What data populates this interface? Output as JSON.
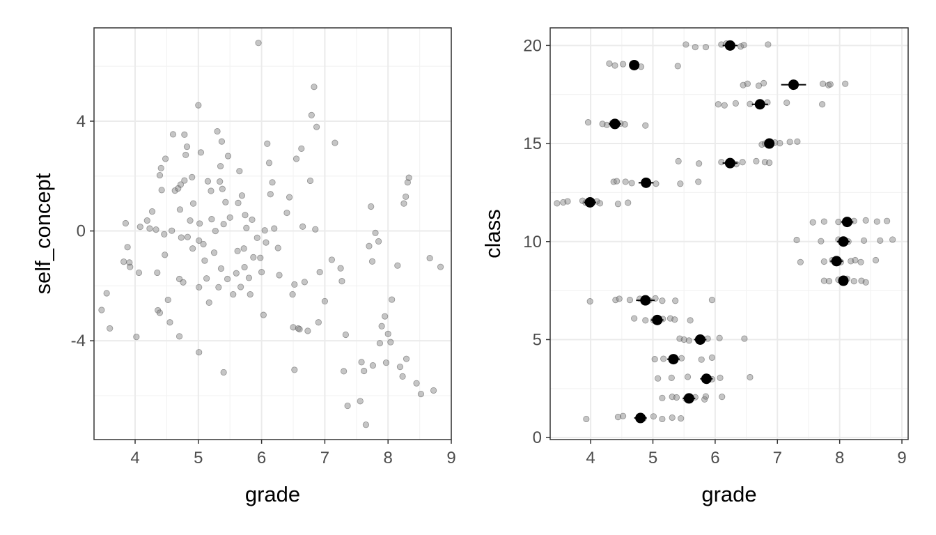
{
  "chart_data": [
    {
      "type": "scatter",
      "xlabel": "grade",
      "ylabel": "self_concept",
      "xlim": [
        3.35,
        9.0
      ],
      "ylim": [
        -7.6,
        7.4
      ],
      "x_ticks": [
        4,
        5,
        6,
        7,
        8,
        9
      ],
      "y_ticks": [
        -4,
        0,
        4
      ],
      "y_tick_labels": [
        "-4",
        "0",
        "4"
      ],
      "grid": true,
      "points": [
        [
          3.47,
          -2.88
        ],
        [
          3.55,
          -2.27
        ],
        [
          3.6,
          -3.55
        ],
        [
          3.82,
          -1.12
        ],
        [
          3.85,
          0.28
        ],
        [
          3.88,
          -0.59
        ],
        [
          3.91,
          -1.15
        ],
        [
          3.92,
          -1.31
        ],
        [
          4.02,
          -3.86
        ],
        [
          4.06,
          -1.52
        ],
        [
          4.08,
          0.15
        ],
        [
          4.19,
          0.38
        ],
        [
          4.23,
          0.09
        ],
        [
          4.27,
          0.71
        ],
        [
          4.33,
          0.05
        ],
        [
          4.35,
          -1.52
        ],
        [
          4.36,
          -2.89
        ],
        [
          4.39,
          -2.98
        ],
        [
          4.39,
          2.03
        ],
        [
          4.41,
          2.29
        ],
        [
          4.42,
          1.49
        ],
        [
          4.46,
          -0.12
        ],
        [
          4.47,
          -0.87
        ],
        [
          4.48,
          2.63
        ],
        [
          4.52,
          -2.51
        ],
        [
          4.55,
          -3.33
        ],
        [
          4.58,
          0.01
        ],
        [
          4.6,
          3.52
        ],
        [
          4.63,
          1.47
        ],
        [
          4.68,
          1.55
        ],
        [
          4.7,
          -3.84
        ],
        [
          4.7,
          -1.75
        ],
        [
          4.71,
          0.78
        ],
        [
          4.72,
          1.69
        ],
        [
          4.73,
          -0.24
        ],
        [
          4.76,
          -1.87
        ],
        [
          4.78,
          1.84
        ],
        [
          4.78,
          3.51
        ],
        [
          4.8,
          2.77
        ],
        [
          4.82,
          3.07
        ],
        [
          4.83,
          -0.22
        ],
        [
          4.87,
          0.38
        ],
        [
          4.9,
          1.96
        ],
        [
          4.91,
          -0.64
        ],
        [
          4.92,
          1.0
        ],
        [
          5.0,
          4.58
        ],
        [
          5.01,
          -2.05
        ],
        [
          5.01,
          -4.42
        ],
        [
          5.01,
          -0.35
        ],
        [
          5.02,
          0.27
        ],
        [
          5.04,
          2.86
        ],
        [
          5.08,
          -0.48
        ],
        [
          5.1,
          -1.08
        ],
        [
          5.13,
          -1.73
        ],
        [
          5.15,
          1.81
        ],
        [
          5.17,
          -2.61
        ],
        [
          5.2,
          1.46
        ],
        [
          5.21,
          0.43
        ],
        [
          5.25,
          -0.79
        ],
        [
          5.27,
          0.0
        ],
        [
          5.3,
          3.63
        ],
        [
          5.32,
          -2.05
        ],
        [
          5.34,
          1.8
        ],
        [
          5.35,
          2.36
        ],
        [
          5.36,
          -1.37
        ],
        [
          5.37,
          3.26
        ],
        [
          5.38,
          1.53
        ],
        [
          5.4,
          -5.15
        ],
        [
          5.4,
          0.25
        ],
        [
          5.43,
          1.05
        ],
        [
          5.46,
          -1.75
        ],
        [
          5.47,
          2.73
        ],
        [
          5.5,
          0.49
        ],
        [
          5.55,
          -2.31
        ],
        [
          5.6,
          -1.54
        ],
        [
          5.62,
          -0.73
        ],
        [
          5.63,
          1.02
        ],
        [
          5.65,
          2.18
        ],
        [
          5.67,
          -2.04
        ],
        [
          5.69,
          1.29
        ],
        [
          5.72,
          -0.64
        ],
        [
          5.73,
          -1.32
        ],
        [
          5.74,
          0.58
        ],
        [
          5.76,
          0.11
        ],
        [
          5.8,
          -1.71
        ],
        [
          5.82,
          -2.31
        ],
        [
          5.85,
          0.41
        ],
        [
          5.87,
          -0.96
        ],
        [
          5.93,
          -0.25
        ],
        [
          5.95,
          6.85
        ],
        [
          5.98,
          -0.98
        ],
        [
          6.0,
          -1.5
        ],
        [
          6.03,
          -3.06
        ],
        [
          6.05,
          0.02
        ],
        [
          6.07,
          -0.42
        ],
        [
          6.09,
          3.18
        ],
        [
          6.12,
          2.48
        ],
        [
          6.14,
          1.34
        ],
        [
          6.17,
          1.77
        ],
        [
          6.2,
          0.09
        ],
        [
          6.26,
          -0.62
        ],
        [
          6.28,
          -1.61
        ],
        [
          6.4,
          0.66
        ],
        [
          6.44,
          1.23
        ],
        [
          6.49,
          -2.31
        ],
        [
          6.5,
          -3.51
        ],
        [
          6.52,
          -1.95
        ],
        [
          6.52,
          -5.06
        ],
        [
          6.55,
          2.63
        ],
        [
          6.58,
          -3.55
        ],
        [
          6.6,
          -3.58
        ],
        [
          6.63,
          3.0
        ],
        [
          6.65,
          0.16
        ],
        [
          6.68,
          -1.86
        ],
        [
          6.73,
          -3.64
        ],
        [
          6.77,
          1.83
        ],
        [
          6.79,
          4.22
        ],
        [
          6.83,
          5.25
        ],
        [
          6.85,
          0.06
        ],
        [
          6.87,
          3.79
        ],
        [
          6.9,
          -3.33
        ],
        [
          6.92,
          -1.5
        ],
        [
          7.0,
          -2.56
        ],
        [
          7.11,
          -1.05
        ],
        [
          7.16,
          3.21
        ],
        [
          7.25,
          -1.36
        ],
        [
          7.27,
          -1.83
        ],
        [
          7.3,
          -5.11
        ],
        [
          7.33,
          -3.78
        ],
        [
          7.36,
          -6.37
        ],
        [
          7.56,
          -6.2
        ],
        [
          7.58,
          -4.78
        ],
        [
          7.62,
          -5.1
        ],
        [
          7.65,
          -7.06
        ],
        [
          7.7,
          -0.55
        ],
        [
          7.73,
          0.89
        ],
        [
          7.75,
          -1.11
        ],
        [
          7.76,
          -4.9
        ],
        [
          7.8,
          -0.07
        ],
        [
          7.85,
          -0.38
        ],
        [
          7.87,
          -4.09
        ],
        [
          7.9,
          -3.47
        ],
        [
          7.95,
          -3.11
        ],
        [
          7.97,
          -4.8
        ],
        [
          8.0,
          -3.75
        ],
        [
          8.04,
          -4.05
        ],
        [
          8.06,
          -2.5
        ],
        [
          8.15,
          -1.26
        ],
        [
          8.19,
          -4.95
        ],
        [
          8.23,
          -5.3
        ],
        [
          8.25,
          1.0
        ],
        [
          8.28,
          1.25
        ],
        [
          8.29,
          -4.66
        ],
        [
          8.31,
          1.77
        ],
        [
          8.33,
          1.94
        ],
        [
          8.45,
          -5.55
        ],
        [
          8.52,
          -5.94
        ],
        [
          8.66,
          -0.99
        ],
        [
          8.72,
          -5.81
        ],
        [
          8.83,
          -1.31
        ]
      ]
    },
    {
      "type": "scatter",
      "xlabel": "grade",
      "ylabel": "class",
      "xlim": [
        3.35,
        9.1
      ],
      "ylim": [
        -0.1,
        20.9
      ],
      "x_ticks": [
        4,
        5,
        6,
        7,
        8,
        9
      ],
      "y_ticks": [
        0,
        5,
        10,
        15,
        20
      ],
      "grid": true,
      "points": [
        [
          3.93,
          0.95
        ],
        [
          4.44,
          1.05
        ],
        [
          4.52,
          1.1
        ],
        [
          4.78,
          1.02
        ],
        [
          4.85,
          0.98
        ],
        [
          5.01,
          1.08
        ],
        [
          5.15,
          0.95
        ],
        [
          5.31,
          1.02
        ],
        [
          5.45,
          0.98
        ],
        [
          5.31,
          2.08
        ],
        [
          5.15,
          2.02
        ],
        [
          5.38,
          2.05
        ],
        [
          5.53,
          1.98
        ],
        [
          5.68,
          2.06
        ],
        [
          5.83,
          1.95
        ],
        [
          5.85,
          2.1
        ],
        [
          6.11,
          2.08
        ],
        [
          5.08,
          3.02
        ],
        [
          5.3,
          3.05
        ],
        [
          5.56,
          3.1
        ],
        [
          5.85,
          3.05
        ],
        [
          5.95,
          2.98
        ],
        [
          6.08,
          3.05
        ],
        [
          6.56,
          3.08
        ],
        [
          5.03,
          4.0
        ],
        [
          5.17,
          4.02
        ],
        [
          5.3,
          3.95
        ],
        [
          5.46,
          4.05
        ],
        [
          5.78,
          3.98
        ],
        [
          5.95,
          4.08
        ],
        [
          5.43,
          5.05
        ],
        [
          5.5,
          5.0
        ],
        [
          5.58,
          4.95
        ],
        [
          5.73,
          5.02
        ],
        [
          5.88,
          5.05
        ],
        [
          6.07,
          5.08
        ],
        [
          6.47,
          5.05
        ],
        [
          4.7,
          6.08
        ],
        [
          4.88,
          5.98
        ],
        [
          5.01,
          5.98
        ],
        [
          5.16,
          6.05
        ],
        [
          5.28,
          6.08
        ],
        [
          5.35,
          6.02
        ],
        [
          5.6,
          5.98
        ],
        [
          4.4,
          7.02
        ],
        [
          4.46,
          7.08
        ],
        [
          4.63,
          7.02
        ],
        [
          4.79,
          7.08
        ],
        [
          4.94,
          7.0
        ],
        [
          5.04,
          7.1
        ],
        [
          5.15,
          6.98
        ],
        [
          5.36,
          6.98
        ],
        [
          5.95,
          7.02
        ],
        [
          3.99,
          6.95
        ],
        [
          7.75,
          8.0
        ],
        [
          7.83,
          7.98
        ],
        [
          7.98,
          8.05
        ],
        [
          8.12,
          8.1
        ],
        [
          8.23,
          7.98
        ],
        [
          8.35,
          8.0
        ],
        [
          8.42,
          7.92
        ],
        [
          7.75,
          8.98
        ],
        [
          7.88,
          9.05
        ],
        [
          8.02,
          8.95
        ],
        [
          8.18,
          9.0
        ],
        [
          8.25,
          9.05
        ],
        [
          8.34,
          8.95
        ],
        [
          8.58,
          9.05
        ],
        [
          7.37,
          8.95
        ],
        [
          7.31,
          10.08
        ],
        [
          7.7,
          10.02
        ],
        [
          7.98,
          10.1
        ],
        [
          8.14,
          10.0
        ],
        [
          8.39,
          10.05
        ],
        [
          8.65,
          10.05
        ],
        [
          8.85,
          10.1
        ],
        [
          7.57,
          10.98
        ],
        [
          7.75,
          11.02
        ],
        [
          7.98,
          11.0
        ],
        [
          8.23,
          11.05
        ],
        [
          8.42,
          11.08
        ],
        [
          8.6,
          11.02
        ],
        [
          8.76,
          11.05
        ],
        [
          3.46,
          11.95
        ],
        [
          3.56,
          12.0
        ],
        [
          3.63,
          12.05
        ],
        [
          3.87,
          12.08
        ],
        [
          3.92,
          11.98
        ],
        [
          4.1,
          12.05
        ],
        [
          4.15,
          11.95
        ],
        [
          4.44,
          11.92
        ],
        [
          4.6,
          11.98
        ],
        [
          4.37,
          13.05
        ],
        [
          4.42,
          13.08
        ],
        [
          4.56,
          13.05
        ],
        [
          4.66,
          12.98
        ],
        [
          4.88,
          13.1
        ],
        [
          5.05,
          12.95
        ],
        [
          5.44,
          12.95
        ],
        [
          5.73,
          13.05
        ],
        [
          5.41,
          14.1
        ],
        [
          5.74,
          13.98
        ],
        [
          6.1,
          14.05
        ],
        [
          6.28,
          14.0
        ],
        [
          6.34,
          13.95
        ],
        [
          6.44,
          14.05
        ],
        [
          6.66,
          14.1
        ],
        [
          6.8,
          14.05
        ],
        [
          6.87,
          14.02
        ],
        [
          6.75,
          14.95
        ],
        [
          6.8,
          15.0
        ],
        [
          6.96,
          15.05
        ],
        [
          7.04,
          15.02
        ],
        [
          7.2,
          15.08
        ],
        [
          7.32,
          15.1
        ],
        [
          3.96,
          16.08
        ],
        [
          4.19,
          16.0
        ],
        [
          4.26,
          15.95
        ],
        [
          4.35,
          16.05
        ],
        [
          4.48,
          16.02
        ],
        [
          4.55,
          15.98
        ],
        [
          4.88,
          15.92
        ],
        [
          6.05,
          17.0
        ],
        [
          6.15,
          16.95
        ],
        [
          6.33,
          17.05
        ],
        [
          6.56,
          17.02
        ],
        [
          6.7,
          16.92
        ],
        [
          6.84,
          17.1
        ],
        [
          7.15,
          17.08
        ],
        [
          7.72,
          17.0
        ],
        [
          6.45,
          17.98
        ],
        [
          6.52,
          18.05
        ],
        [
          6.7,
          17.95
        ],
        [
          6.78,
          18.08
        ],
        [
          7.73,
          18.05
        ],
        [
          7.82,
          17.98
        ],
        [
          7.85,
          18.02
        ],
        [
          8.09,
          18.05
        ],
        [
          4.3,
          19.08
        ],
        [
          4.39,
          18.98
        ],
        [
          4.52,
          19.05
        ],
        [
          4.81,
          18.92
        ],
        [
          5.4,
          18.95
        ],
        [
          5.53,
          20.05
        ],
        [
          5.68,
          19.92
        ],
        [
          5.85,
          19.92
        ],
        [
          6.1,
          20.05
        ],
        [
          6.18,
          20.1
        ],
        [
          6.41,
          19.95
        ],
        [
          6.46,
          20.02
        ],
        [
          6.85,
          20.05
        ]
      ],
      "means": [
        {
          "class": 1,
          "grade": 4.8,
          "se": 0.1
        },
        {
          "class": 2,
          "grade": 5.58,
          "se": 0.1
        },
        {
          "class": 3,
          "grade": 5.86,
          "se": 0.1
        },
        {
          "class": 4,
          "grade": 5.33,
          "se": 0.1
        },
        {
          "class": 5,
          "grade": 5.76,
          "se": 0.1
        },
        {
          "class": 6,
          "grade": 5.07,
          "se": 0.1
        },
        {
          "class": 7,
          "grade": 4.88,
          "se": 0.15
        },
        {
          "class": 8,
          "grade": 8.06,
          "se": 0.06
        },
        {
          "class": 9,
          "grade": 7.95,
          "se": 0.1
        },
        {
          "class": 10,
          "grade": 8.06,
          "se": 0.1
        },
        {
          "class": 11,
          "grade": 8.12,
          "se": 0.1
        },
        {
          "class": 12,
          "grade": 3.99,
          "se": 0.1
        },
        {
          "class": 13,
          "grade": 4.89,
          "se": 0.12
        },
        {
          "class": 14,
          "grade": 6.24,
          "se": 0.12
        },
        {
          "class": 15,
          "grade": 6.87,
          "se": 0.08
        },
        {
          "class": 16,
          "grade": 4.39,
          "se": 0.1
        },
        {
          "class": 17,
          "grade": 6.72,
          "se": 0.13
        },
        {
          "class": 18,
          "grade": 7.26,
          "se": 0.2
        },
        {
          "class": 19,
          "grade": 4.7,
          "se": 0.08
        },
        {
          "class": 20,
          "grade": 6.24,
          "se": 0.12
        }
      ]
    }
  ]
}
